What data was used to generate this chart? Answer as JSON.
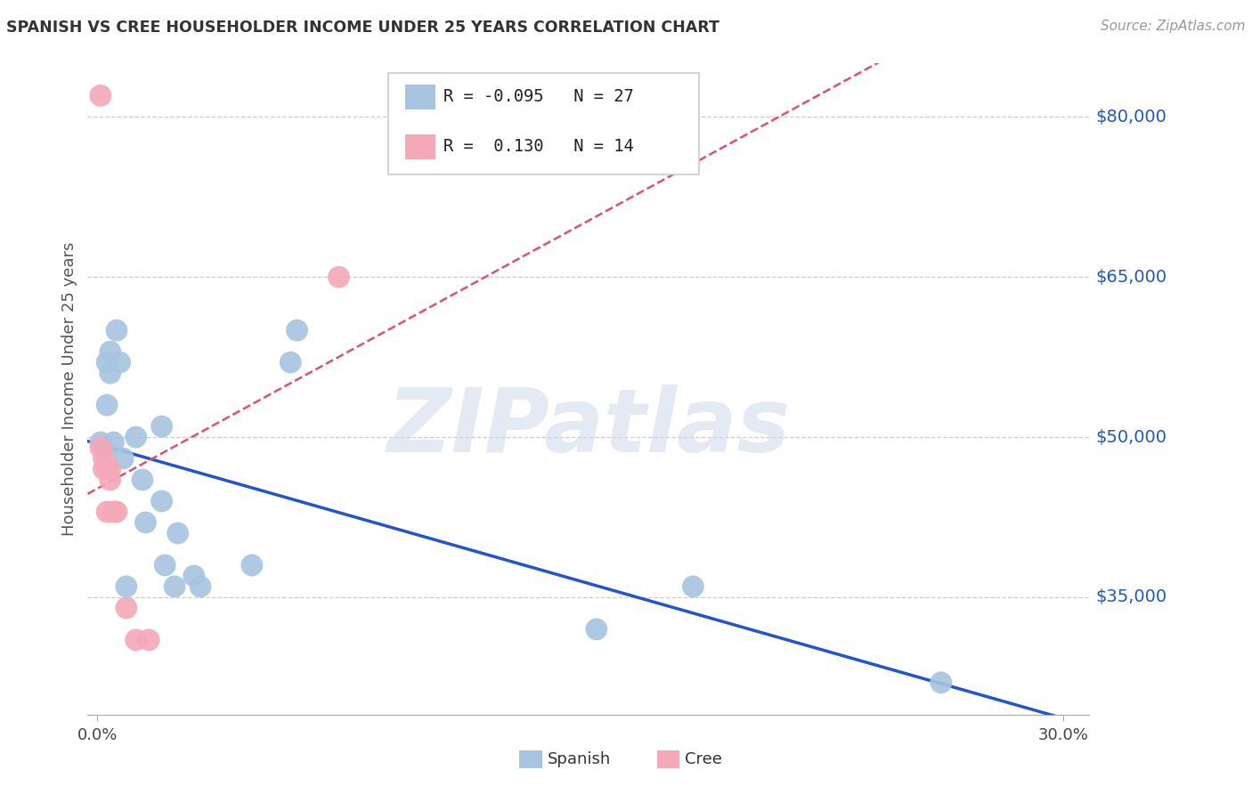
{
  "title": "SPANISH VS CREE HOUSEHOLDER INCOME UNDER 25 YEARS CORRELATION CHART",
  "source": "Source: ZipAtlas.com",
  "ylabel": "Householder Income Under 25 years",
  "ytick_labels": [
    "$80,000",
    "$65,000",
    "$50,000",
    "$35,000"
  ],
  "ytick_values": [
    80000,
    65000,
    50000,
    35000
  ],
  "ylim": [
    24000,
    85000
  ],
  "xlim": [
    -0.003,
    0.308
  ],
  "spanish_R": "-0.095",
  "spanish_N": "27",
  "cree_R": "0.130",
  "cree_N": "14",
  "spanish_color": "#a8c4e0",
  "cree_color": "#f4a8b8",
  "spanish_line_color": "#2255cc",
  "cree_line_color": "#e05070",
  "watermark": "ZIPatlas",
  "spanish_x": [
    0.001,
    0.002,
    0.003,
    0.003,
    0.004,
    0.004,
    0.005,
    0.006,
    0.007,
    0.008,
    0.009,
    0.012,
    0.014,
    0.015,
    0.02,
    0.02,
    0.021,
    0.024,
    0.025,
    0.03,
    0.032,
    0.048,
    0.06,
    0.062,
    0.155,
    0.185,
    0.262
  ],
  "spanish_y": [
    49500,
    49000,
    57000,
    53000,
    58000,
    56000,
    49500,
    60000,
    57000,
    48000,
    36000,
    50000,
    46000,
    42000,
    51000,
    44000,
    38000,
    36000,
    41000,
    37000,
    36000,
    38000,
    57000,
    60000,
    32000,
    36000,
    27000
  ],
  "cree_x": [
    0.001,
    0.001,
    0.002,
    0.002,
    0.003,
    0.003,
    0.004,
    0.004,
    0.005,
    0.006,
    0.009,
    0.012,
    0.016,
    0.075
  ],
  "cree_y": [
    82000,
    49000,
    48000,
    47000,
    43000,
    47000,
    46000,
    47000,
    43000,
    43000,
    34000,
    31000,
    31000,
    65000
  ]
}
